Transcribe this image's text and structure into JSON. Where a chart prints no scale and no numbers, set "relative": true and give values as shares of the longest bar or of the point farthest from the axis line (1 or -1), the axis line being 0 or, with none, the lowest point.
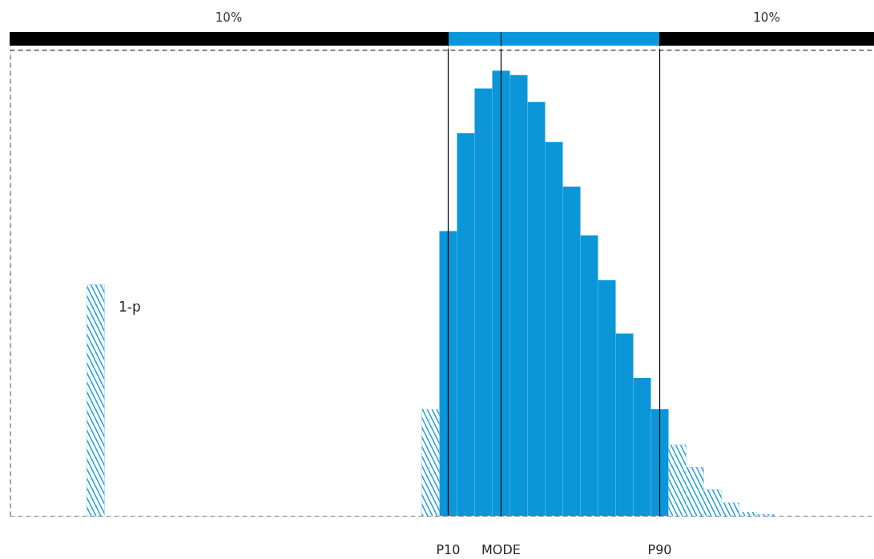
{
  "chart_data": {
    "type": "bar",
    "relative": true,
    "tick_labels": "x",
    "categories": [
      null,
      null,
      null,
      null,
      null,
      null,
      null,
      null,
      null,
      null,
      null,
      null,
      null,
      null,
      null,
      null,
      null,
      null,
      null,
      null,
      null,
      null,
      null,
      null,
      "P10",
      null,
      null,
      "MODE",
      null,
      null,
      null,
      null,
      null,
      null,
      null,
      null,
      "P90",
      null,
      null,
      null,
      null,
      null,
      null,
      null,
      null,
      null,
      null,
      null,
      null
    ],
    "values": [
      null,
      null,
      null,
      null,
      0.52,
      null,
      null,
      null,
      null,
      null,
      null,
      null,
      null,
      null,
      null,
      null,
      null,
      null,
      null,
      null,
      null,
      null,
      null,
      0.24,
      0.64,
      0.86,
      0.96,
      1,
      0.99,
      0.93,
      0.84,
      0.74,
      0.63,
      0.53,
      0.41,
      0.31,
      0.24,
      0.16,
      0.11,
      0.06,
      0.03,
      0.01,
      0.004,
      null,
      null,
      null,
      null,
      null,
      null
    ],
    "color": "#0a96d8",
    "ref_lines": [
      {
        "axis": "x",
        "value": "P10",
        "color": "#000000"
      },
      {
        "axis": "x",
        "value": "MODE",
        "color": "#000000"
      },
      {
        "axis": "x",
        "value": "P90",
        "color": "#000000"
      }
    ],
    "annotations": [
      "10%",
      "10%",
      "1-p"
    ]
  }
}
